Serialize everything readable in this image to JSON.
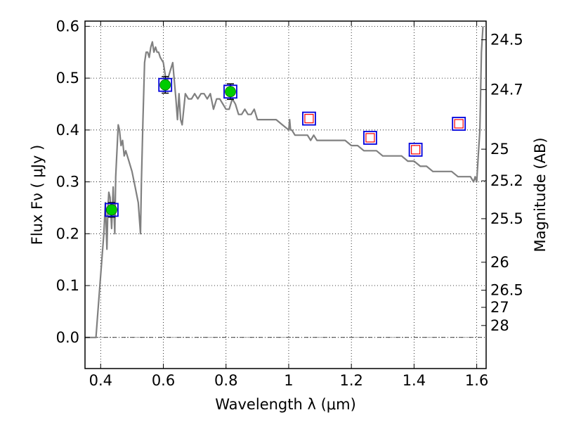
{
  "chart_data": {
    "type": "line",
    "title": "",
    "xlabel": "Wavelength  λ (μm)",
    "ylabel": "Flux  Fν  ( μJy )",
    "y2label": "Magnitude (AB)",
    "xlim": [
      0.35,
      1.63
    ],
    "ylim": [
      -0.06,
      0.61
    ],
    "grid": true,
    "x_ticks": [
      0.4,
      0.6,
      0.8,
      1.0,
      1.2,
      1.4,
      1.6
    ],
    "x_tick_labels": [
      "0.4",
      "0.6",
      "0.8",
      "1",
      "1.2",
      "1.4",
      "1.6"
    ],
    "y_ticks": [
      0.0,
      0.1,
      0.2,
      0.3,
      0.4,
      0.5,
      0.6
    ],
    "y_tick_labels": [
      "0.0",
      "0.1",
      "0.2",
      "0.3",
      "0.4",
      "0.5",
      "0.6"
    ],
    "y2_ticks": [
      {
        "label": "24.5",
        "flux": 0.574
      },
      {
        "label": "24.7",
        "flux": 0.478
      },
      {
        "label": "25",
        "flux": 0.363
      },
      {
        "label": "25.2",
        "flux": 0.302
      },
      {
        "label": "25.5",
        "flux": 0.229
      },
      {
        "label": "26",
        "flux": 0.145
      },
      {
        "label": "26.5",
        "flux": 0.091
      },
      {
        "label": "27",
        "flux": 0.058
      },
      {
        "label": "28",
        "flux": 0.023
      }
    ],
    "series": [
      {
        "style": "line",
        "color": "#808080",
        "x": [
          0.35,
          0.385,
          0.39,
          0.4,
          0.41,
          0.415,
          0.42,
          0.423,
          0.426,
          0.43,
          0.435,
          0.44,
          0.445,
          0.448,
          0.452,
          0.456,
          0.46,
          0.465,
          0.47,
          0.475,
          0.48,
          0.49,
          0.5,
          0.51,
          0.52,
          0.527,
          0.53,
          0.535,
          0.54,
          0.545,
          0.55,
          0.555,
          0.56,
          0.565,
          0.57,
          0.575,
          0.58,
          0.585,
          0.59,
          0.6,
          0.61,
          0.62,
          0.63,
          0.64,
          0.645,
          0.65,
          0.655,
          0.66,
          0.67,
          0.68,
          0.69,
          0.7,
          0.71,
          0.72,
          0.73,
          0.74,
          0.75,
          0.76,
          0.77,
          0.78,
          0.79,
          0.8,
          0.81,
          0.82,
          0.83,
          0.84,
          0.85,
          0.86,
          0.87,
          0.88,
          0.89,
          0.9,
          0.92,
          0.94,
          0.96,
          0.98,
          1.0,
          1.003,
          1.006,
          1.01,
          1.02,
          1.03,
          1.04,
          1.05,
          1.06,
          1.07,
          1.08,
          1.09,
          1.1,
          1.12,
          1.14,
          1.16,
          1.18,
          1.2,
          1.22,
          1.24,
          1.26,
          1.28,
          1.3,
          1.32,
          1.34,
          1.36,
          1.38,
          1.4,
          1.42,
          1.44,
          1.46,
          1.48,
          1.5,
          1.52,
          1.54,
          1.56,
          1.58,
          1.59,
          1.595,
          1.6,
          1.605,
          1.61,
          1.615,
          1.62
        ],
        "y": [
          0.0,
          0.0,
          0.04,
          0.12,
          0.2,
          0.26,
          0.17,
          0.25,
          0.28,
          0.27,
          0.21,
          0.29,
          0.2,
          0.31,
          0.36,
          0.41,
          0.4,
          0.37,
          0.38,
          0.35,
          0.36,
          0.34,
          0.32,
          0.29,
          0.26,
          0.2,
          0.3,
          0.42,
          0.53,
          0.55,
          0.55,
          0.54,
          0.56,
          0.57,
          0.55,
          0.56,
          0.55,
          0.55,
          0.54,
          0.53,
          0.49,
          0.51,
          0.53,
          0.46,
          0.42,
          0.47,
          0.42,
          0.41,
          0.47,
          0.46,
          0.46,
          0.47,
          0.46,
          0.47,
          0.47,
          0.46,
          0.47,
          0.44,
          0.46,
          0.46,
          0.45,
          0.44,
          0.44,
          0.46,
          0.45,
          0.43,
          0.43,
          0.44,
          0.43,
          0.43,
          0.44,
          0.42,
          0.42,
          0.42,
          0.42,
          0.41,
          0.4,
          0.42,
          0.4,
          0.4,
          0.39,
          0.39,
          0.39,
          0.39,
          0.39,
          0.38,
          0.39,
          0.38,
          0.38,
          0.38,
          0.38,
          0.38,
          0.38,
          0.37,
          0.37,
          0.36,
          0.36,
          0.36,
          0.35,
          0.35,
          0.35,
          0.35,
          0.34,
          0.34,
          0.33,
          0.33,
          0.32,
          0.32,
          0.32,
          0.32,
          0.31,
          0.31,
          0.31,
          0.3,
          0.31,
          0.3,
          0.35,
          0.4,
          0.55,
          0.6
        ]
      },
      {
        "style": "points-filled",
        "marker_color": "#00cc00",
        "box_color": "#0000dd",
        "x": [
          0.435,
          0.606,
          0.814
        ],
        "y": [
          0.246,
          0.487,
          0.474
        ],
        "yerr": [
          0.014,
          0.016,
          0.015
        ]
      },
      {
        "style": "points-open",
        "marker_color": "#ff0000",
        "box_color": "#0000dd",
        "x": [
          1.065,
          1.26,
          1.405,
          1.543
        ],
        "y": [
          0.422,
          0.385,
          0.362,
          0.412
        ]
      }
    ]
  }
}
